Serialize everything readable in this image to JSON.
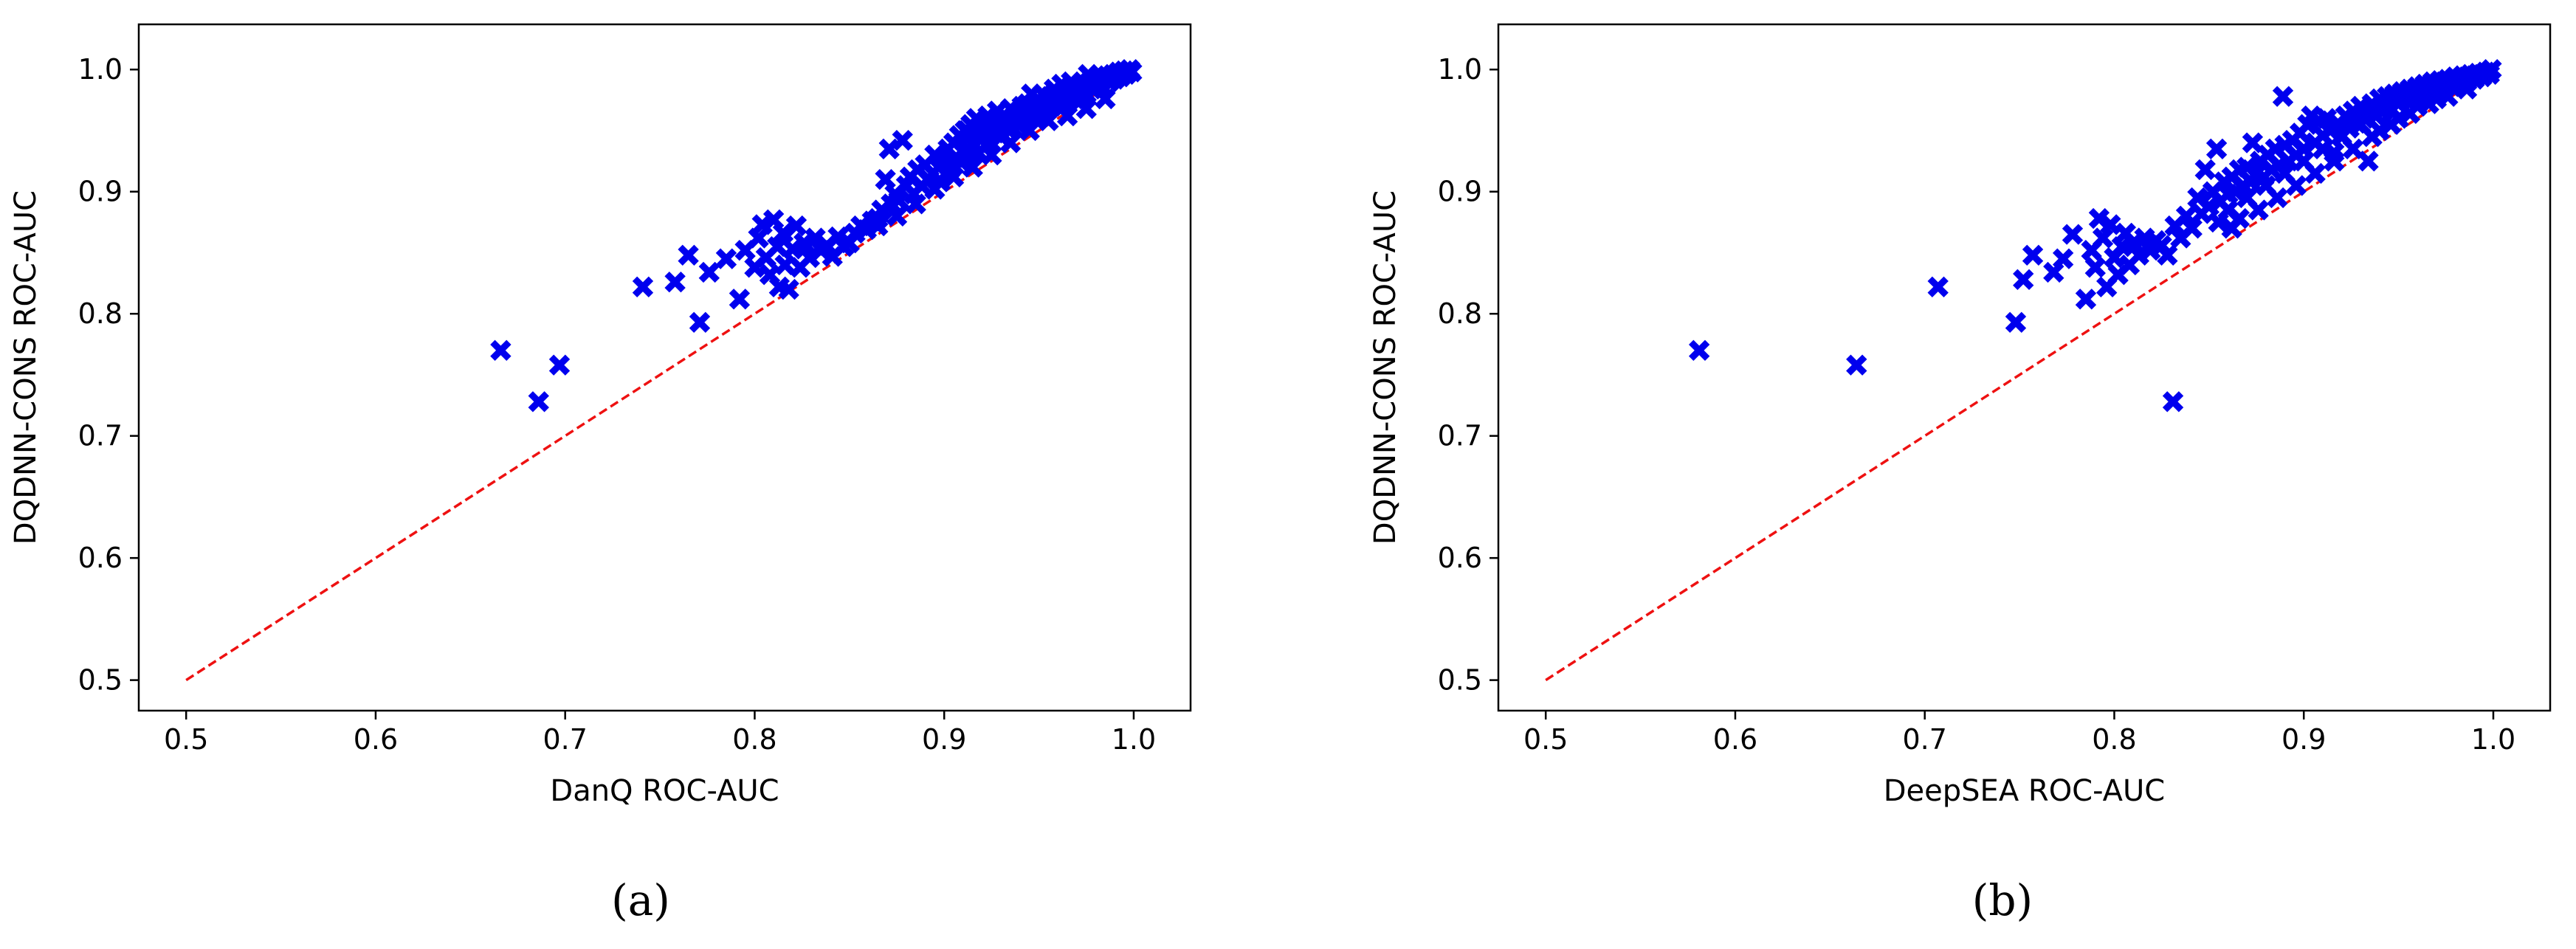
{
  "figure": {
    "panel_labels": [
      "(a)",
      "(b)"
    ]
  },
  "chart_data": [
    {
      "type": "scatter",
      "title": "",
      "xlabel": "DanQ ROC-AUC",
      "ylabel": "DQDNN-CONS ROC-AUC",
      "xlim": [
        0.475,
        1.03
      ],
      "ylim": [
        0.475,
        1.037
      ],
      "xticks": [
        "0.5",
        "0.6",
        "0.7",
        "0.8",
        "0.9",
        "1.0"
      ],
      "yticks": [
        "0.5",
        "0.6",
        "0.7",
        "0.8",
        "0.9",
        "1.0"
      ],
      "grid": false,
      "marker": "X",
      "marker_color": "#0000ee",
      "reference_line": {
        "x": [
          0.5,
          1.0
        ],
        "y": [
          0.5,
          1.0
        ],
        "color": "#ee1111",
        "style": "dashed"
      },
      "points": [
        [
          0.666,
          0.77
        ],
        [
          0.686,
          0.728
        ],
        [
          0.697,
          0.758
        ],
        [
          0.741,
          0.822
        ],
        [
          0.758,
          0.826
        ],
        [
          0.765,
          0.848
        ],
        [
          0.771,
          0.793
        ],
        [
          0.776,
          0.834
        ],
        [
          0.785,
          0.845
        ],
        [
          0.792,
          0.812
        ],
        [
          0.795,
          0.852
        ],
        [
          0.8,
          0.838
        ],
        [
          0.802,
          0.862
        ],
        [
          0.804,
          0.873
        ],
        [
          0.806,
          0.846
        ],
        [
          0.808,
          0.832
        ],
        [
          0.81,
          0.877
        ],
        [
          0.812,
          0.855
        ],
        [
          0.813,
          0.822
        ],
        [
          0.815,
          0.866
        ],
        [
          0.816,
          0.84
        ],
        [
          0.818,
          0.82
        ],
        [
          0.82,
          0.853
        ],
        [
          0.822,
          0.872
        ],
        [
          0.824,
          0.838
        ],
        [
          0.826,
          0.858
        ],
        [
          0.829,
          0.846
        ],
        [
          0.832,
          0.862
        ],
        [
          0.835,
          0.852
        ],
        [
          0.838,
          0.856
        ],
        [
          0.841,
          0.847
        ],
        [
          0.844,
          0.863
        ],
        [
          0.847,
          0.855
        ],
        [
          0.85,
          0.858
        ],
        [
          0.853,
          0.866
        ],
        [
          0.856,
          0.872
        ],
        [
          0.859,
          0.869
        ],
        [
          0.862,
          0.876
        ],
        [
          0.865,
          0.878
        ],
        [
          0.867,
          0.885
        ],
        [
          0.869,
          0.91
        ],
        [
          0.871,
          0.935
        ],
        [
          0.872,
          0.89
        ],
        [
          0.874,
          0.898
        ],
        [
          0.876,
          0.893
        ],
        [
          0.878,
          0.942
        ],
        [
          0.88,
          0.905
        ],
        [
          0.882,
          0.912
        ],
        [
          0.884,
          0.898
        ],
        [
          0.886,
          0.918
        ],
        [
          0.888,
          0.905
        ],
        [
          0.89,
          0.922
        ],
        [
          0.892,
          0.91
        ],
        [
          0.894,
          0.915
        ],
        [
          0.895,
          0.93
        ],
        [
          0.897,
          0.92
        ],
        [
          0.898,
          0.908
        ],
        [
          0.9,
          0.925
        ],
        [
          0.902,
          0.935
        ],
        [
          0.903,
          0.918
        ],
        [
          0.905,
          0.94
        ],
        [
          0.906,
          0.928
        ],
        [
          0.908,
          0.946
        ],
        [
          0.909,
          0.924
        ],
        [
          0.911,
          0.95
        ],
        [
          0.912,
          0.935
        ],
        [
          0.914,
          0.955
        ],
        [
          0.915,
          0.94
        ],
        [
          0.917,
          0.96
        ],
        [
          0.918,
          0.932
        ],
        [
          0.92,
          0.95
        ],
        [
          0.921,
          0.945
        ],
        [
          0.923,
          0.962
        ],
        [
          0.924,
          0.94
        ],
        [
          0.926,
          0.955
        ],
        [
          0.927,
          0.948
        ],
        [
          0.929,
          0.958
        ],
        [
          0.93,
          0.945
        ],
        [
          0.932,
          0.962
        ],
        [
          0.933,
          0.952
        ],
        [
          0.935,
          0.968
        ],
        [
          0.936,
          0.952
        ],
        [
          0.938,
          0.96
        ],
        [
          0.939,
          0.955
        ],
        [
          0.941,
          0.97
        ],
        [
          0.942,
          0.958
        ],
        [
          0.944,
          0.972
        ],
        [
          0.945,
          0.962
        ],
        [
          0.947,
          0.968
        ],
        [
          0.948,
          0.962
        ],
        [
          0.95,
          0.975
        ],
        [
          0.951,
          0.965
        ],
        [
          0.953,
          0.972
        ],
        [
          0.954,
          0.966
        ],
        [
          0.956,
          0.978
        ],
        [
          0.957,
          0.97
        ],
        [
          0.959,
          0.975
        ],
        [
          0.96,
          0.97
        ],
        [
          0.962,
          0.98
        ],
        [
          0.963,
          0.972
        ],
        [
          0.965,
          0.978
        ],
        [
          0.966,
          0.975
        ],
        [
          0.968,
          0.985
        ],
        [
          0.969,
          0.976
        ],
        [
          0.971,
          0.982
        ],
        [
          0.972,
          0.978
        ],
        [
          0.974,
          0.988
        ],
        [
          0.975,
          0.98
        ],
        [
          0.977,
          0.99
        ],
        [
          0.978,
          0.984
        ],
        [
          0.98,
          0.992
        ],
        [
          0.981,
          0.986
        ],
        [
          0.983,
          0.994
        ],
        [
          0.984,
          0.985
        ],
        [
          0.986,
          0.995
        ],
        [
          0.987,
          0.99
        ],
        [
          0.989,
          0.996
        ],
        [
          0.99,
          0.992
        ],
        [
          0.992,
          0.998
        ],
        [
          0.993,
          0.994
        ],
        [
          0.995,
          0.999
        ],
        [
          0.996,
          0.996
        ],
        [
          0.998,
          1.0
        ],
        [
          0.999,
          0.998
        ],
        [
          0.985,
          0.976
        ],
        [
          0.975,
          0.968
        ],
        [
          0.965,
          0.962
        ],
        [
          0.955,
          0.958
        ],
        [
          0.945,
          0.95
        ],
        [
          0.935,
          0.94
        ],
        [
          0.925,
          0.93
        ],
        [
          0.915,
          0.92
        ],
        [
          0.905,
          0.912
        ],
        [
          0.895,
          0.902
        ],
        [
          0.885,
          0.89
        ],
        [
          0.875,
          0.88
        ],
        [
          0.865,
          0.872
        ],
        [
          0.912,
          0.95
        ],
        [
          0.918,
          0.948
        ],
        [
          0.922,
          0.938
        ],
        [
          0.928,
          0.966
        ],
        [
          0.946,
          0.98
        ],
        [
          0.958,
          0.984
        ],
        [
          0.967,
          0.99
        ],
        [
          0.976,
          0.996
        ],
        [
          0.962,
          0.988
        ],
        [
          0.952,
          0.98
        ]
      ]
    },
    {
      "type": "scatter",
      "title": "",
      "xlabel": "DeepSEA ROC-AUC",
      "ylabel": "DQDNN-CONS ROC-AUC",
      "xlim": [
        0.475,
        1.03
      ],
      "ylim": [
        0.475,
        1.037
      ],
      "xticks": [
        "0.5",
        "0.6",
        "0.7",
        "0.8",
        "0.9",
        "1.0"
      ],
      "yticks": [
        "0.5",
        "0.6",
        "0.7",
        "0.8",
        "0.9",
        "1.0"
      ],
      "grid": false,
      "marker": "X",
      "marker_color": "#0000ee",
      "reference_line": {
        "x": [
          0.5,
          1.0
        ],
        "y": [
          0.5,
          1.0
        ],
        "color": "#ee1111",
        "style": "dashed"
      },
      "points": [
        [
          0.581,
          0.77
        ],
        [
          0.664,
          0.758
        ],
        [
          0.707,
          0.822
        ],
        [
          0.748,
          0.793
        ],
        [
          0.752,
          0.828
        ],
        [
          0.757,
          0.848
        ],
        [
          0.768,
          0.834
        ],
        [
          0.773,
          0.845
        ],
        [
          0.778,
          0.865
        ],
        [
          0.785,
          0.812
        ],
        [
          0.788,
          0.852
        ],
        [
          0.79,
          0.838
        ],
        [
          0.792,
          0.878
        ],
        [
          0.794,
          0.862
        ],
        [
          0.796,
          0.822
        ],
        [
          0.798,
          0.873
        ],
        [
          0.8,
          0.846
        ],
        [
          0.802,
          0.832
        ],
        [
          0.804,
          0.855
        ],
        [
          0.806,
          0.866
        ],
        [
          0.808,
          0.84
        ],
        [
          0.81,
          0.858
        ],
        [
          0.813,
          0.848
        ],
        [
          0.816,
          0.862
        ],
        [
          0.819,
          0.852
        ],
        [
          0.822,
          0.86
        ],
        [
          0.825,
          0.856
        ],
        [
          0.828,
          0.848
        ],
        [
          0.832,
          0.872
        ],
        [
          0.831,
          0.728
        ],
        [
          0.835,
          0.862
        ],
        [
          0.838,
          0.88
        ],
        [
          0.841,
          0.87
        ],
        [
          0.844,
          0.895
        ],
        [
          0.846,
          0.882
        ],
        [
          0.848,
          0.918
        ],
        [
          0.85,
          0.888
        ],
        [
          0.852,
          0.9
        ],
        [
          0.854,
          0.935
        ],
        [
          0.856,
          0.892
        ],
        [
          0.858,
          0.908
        ],
        [
          0.86,
          0.898
        ],
        [
          0.862,
          0.912
        ],
        [
          0.864,
          0.9
        ],
        [
          0.866,
          0.918
        ],
        [
          0.868,
          0.905
        ],
        [
          0.87,
          0.92
        ],
        [
          0.872,
          0.908
        ],
        [
          0.873,
          0.94
        ],
        [
          0.875,
          0.915
        ],
        [
          0.877,
          0.925
        ],
        [
          0.879,
          0.912
        ],
        [
          0.881,
          0.93
        ],
        [
          0.883,
          0.918
        ],
        [
          0.885,
          0.935
        ],
        [
          0.887,
          0.922
        ],
        [
          0.889,
          0.978
        ],
        [
          0.89,
          0.938
        ],
        [
          0.892,
          0.925
        ],
        [
          0.894,
          0.942
        ],
        [
          0.896,
          0.93
        ],
        [
          0.898,
          0.948
        ],
        [
          0.9,
          0.935
        ],
        [
          0.902,
          0.955
        ],
        [
          0.904,
          0.962
        ],
        [
          0.906,
          0.94
        ],
        [
          0.908,
          0.958
        ],
        [
          0.91,
          0.946
        ],
        [
          0.912,
          0.96
        ],
        [
          0.914,
          0.95
        ],
        [
          0.916,
          0.932
        ],
        [
          0.918,
          0.956
        ],
        [
          0.92,
          0.946
        ],
        [
          0.922,
          0.962
        ],
        [
          0.924,
          0.952
        ],
        [
          0.926,
          0.966
        ],
        [
          0.928,
          0.956
        ],
        [
          0.93,
          0.97
        ],
        [
          0.932,
          0.96
        ],
        [
          0.934,
          0.925
        ],
        [
          0.936,
          0.972
        ],
        [
          0.938,
          0.962
        ],
        [
          0.94,
          0.976
        ],
        [
          0.942,
          0.966
        ],
        [
          0.944,
          0.978
        ],
        [
          0.946,
          0.968
        ],
        [
          0.948,
          0.98
        ],
        [
          0.95,
          0.972
        ],
        [
          0.952,
          0.982
        ],
        [
          0.954,
          0.975
        ],
        [
          0.956,
          0.984
        ],
        [
          0.958,
          0.976
        ],
        [
          0.96,
          0.986
        ],
        [
          0.962,
          0.978
        ],
        [
          0.964,
          0.988
        ],
        [
          0.966,
          0.98
        ],
        [
          0.968,
          0.99
        ],
        [
          0.97,
          0.982
        ],
        [
          0.972,
          0.991
        ],
        [
          0.974,
          0.985
        ],
        [
          0.976,
          0.992
        ],
        [
          0.978,
          0.986
        ],
        [
          0.98,
          0.994
        ],
        [
          0.982,
          0.988
        ],
        [
          0.984,
          0.995
        ],
        [
          0.986,
          0.99
        ],
        [
          0.988,
          0.996
        ],
        [
          0.99,
          0.992
        ],
        [
          0.992,
          0.997
        ],
        [
          0.994,
          0.994
        ],
        [
          0.996,
          0.998
        ],
        [
          0.998,
          0.996
        ],
        [
          0.999,
          1.0
        ],
        [
          0.866,
          0.878
        ],
        [
          0.876,
          0.885
        ],
        [
          0.886,
          0.895
        ],
        [
          0.896,
          0.905
        ],
        [
          0.906,
          0.915
        ],
        [
          0.916,
          0.925
        ],
        [
          0.926,
          0.935
        ],
        [
          0.936,
          0.945
        ],
        [
          0.946,
          0.955
        ],
        [
          0.956,
          0.964
        ],
        [
          0.966,
          0.972
        ],
        [
          0.976,
          0.978
        ],
        [
          0.986,
          0.984
        ],
        [
          0.87,
          0.895
        ],
        [
          0.88,
          0.905
        ],
        [
          0.89,
          0.915
        ],
        [
          0.9,
          0.925
        ],
        [
          0.91,
          0.935
        ],
        [
          0.92,
          0.945
        ],
        [
          0.93,
          0.955
        ],
        [
          0.86,
          0.885
        ],
        [
          0.855,
          0.875
        ],
        [
          0.862,
          0.87
        ],
        [
          0.94,
          0.95
        ],
        [
          0.95,
          0.96
        ],
        [
          0.96,
          0.97
        ],
        [
          0.97,
          0.976
        ]
      ]
    }
  ]
}
